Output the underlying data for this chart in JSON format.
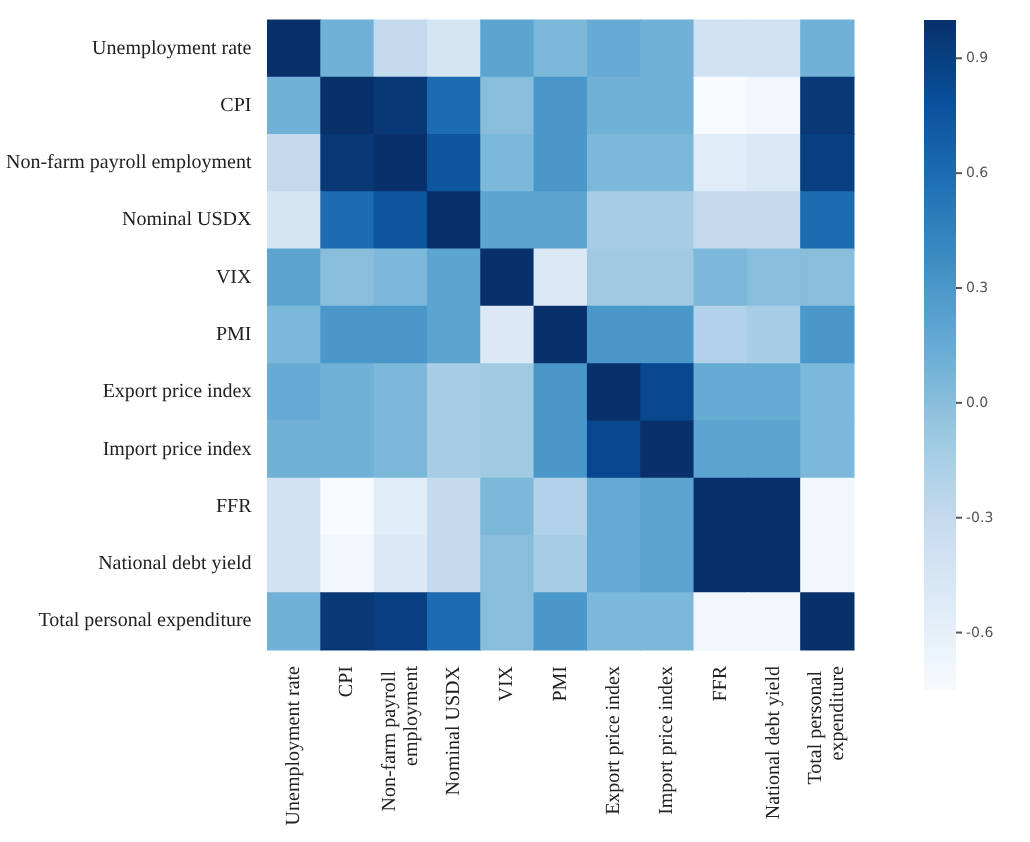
{
  "chart_data": {
    "type": "heatmap",
    "categories": [
      "Unemployment rate",
      "CPI",
      "Non-farm payroll employment",
      "Nominal USDX",
      "VIX",
      "PMI",
      "Export price index",
      "Import price index",
      "FFR",
      "National debt yield",
      "Total personal expenditure"
    ],
    "y_categories": [
      "Unemployment rate",
      "CPI",
      "Non-farm payroll employment",
      "Nominal USDX",
      "VIX",
      "PMI",
      "Export price index",
      "Import price index",
      "FFR",
      "National debt yield",
      "Total personal expenditure"
    ],
    "cells": [
      [
        1,
        0.1,
        -0.3,
        -0.45,
        0.2,
        0.05,
        0.15,
        0.1,
        -0.4,
        -0.4,
        0.1
      ],
      [
        0.1,
        1,
        0.95,
        0.6,
        0,
        0.3,
        0.1,
        0.1,
        -0.75,
        -0.7,
        0.95
      ],
      [
        -0.3,
        0.95,
        1,
        0.75,
        0.05,
        0.3,
        0.05,
        0.05,
        -0.55,
        -0.5,
        0.9
      ],
      [
        -0.45,
        0.6,
        0.75,
        1,
        0.2,
        0.2,
        -0.15,
        -0.15,
        -0.3,
        -0.3,
        0.6
      ],
      [
        0.2,
        0,
        0.05,
        0.2,
        1,
        -0.5,
        -0.1,
        -0.1,
        0.05,
        0,
        0
      ],
      [
        0.05,
        0.3,
        0.3,
        0.2,
        -0.5,
        1,
        0.3,
        0.3,
        -0.2,
        -0.15,
        0.3
      ],
      [
        0.15,
        0.1,
        0.05,
        -0.15,
        -0.1,
        0.3,
        1,
        0.85,
        0.15,
        0.15,
        0.05
      ],
      [
        0.1,
        0.1,
        0.05,
        -0.15,
        -0.1,
        0.3,
        0.85,
        1,
        0.2,
        0.2,
        0.05
      ],
      [
        -0.4,
        -0.75,
        -0.55,
        -0.3,
        0.05,
        -0.2,
        0.15,
        0.2,
        1,
        1,
        -0.7
      ],
      [
        -0.4,
        -0.7,
        -0.5,
        -0.3,
        0,
        -0.15,
        0.15,
        0.2,
        1,
        1,
        -0.7
      ],
      [
        0.1,
        0.95,
        0.9,
        0.6,
        0,
        0.3,
        0.05,
        0.05,
        -0.7,
        -0.7,
        1
      ]
    ],
    "clim": [
      -0.75,
      1
    ],
    "cticks": [
      0.9,
      0.6,
      0.3,
      {
        "value": 0,
        "label": "0.0"
      },
      -0.3,
      -0.6
    ]
  }
}
